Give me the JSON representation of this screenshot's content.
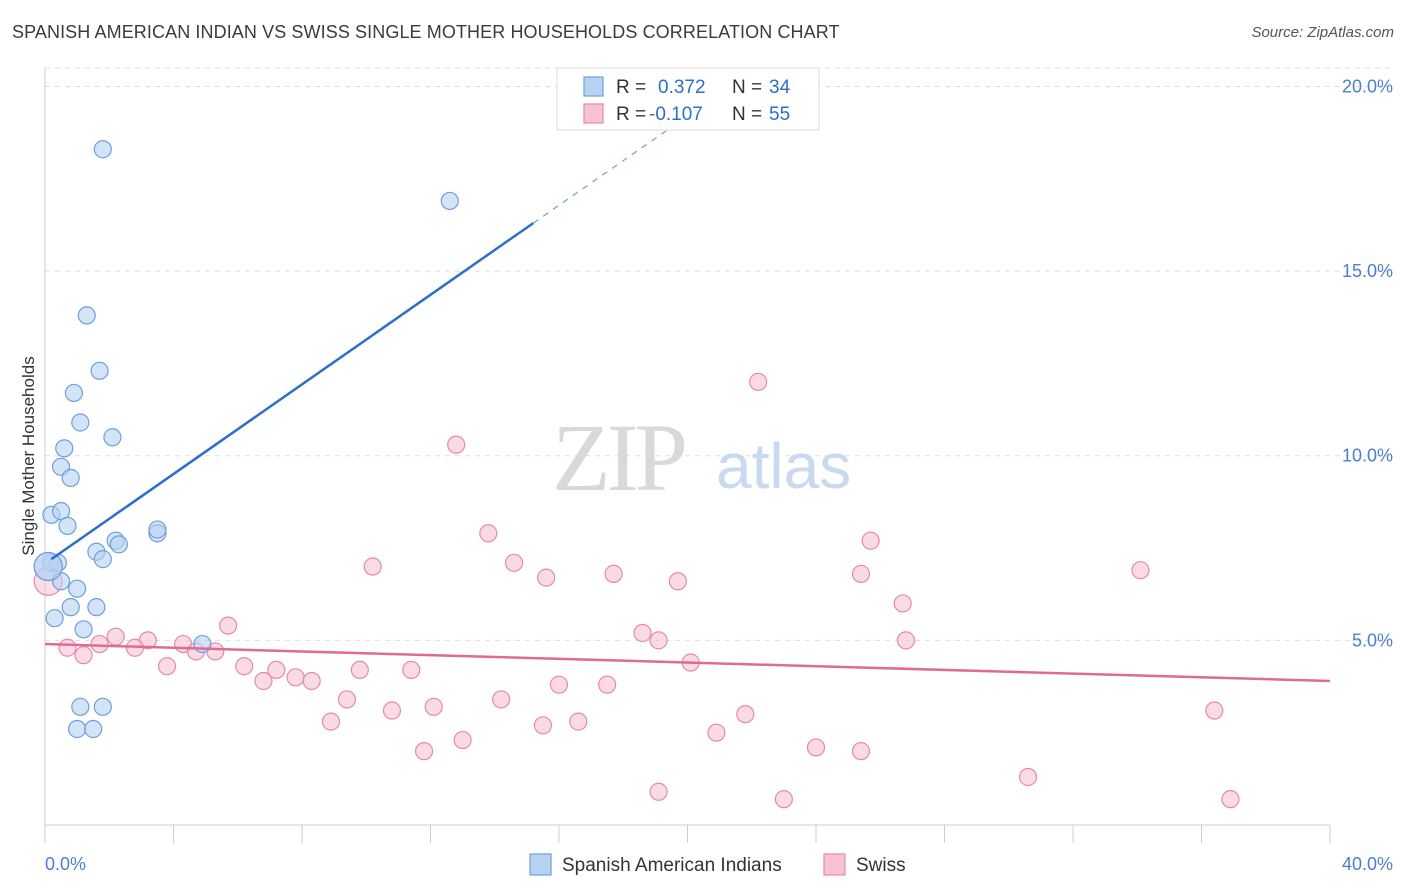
{
  "header": {
    "title": "SPANISH AMERICAN INDIAN VS SWISS SINGLE MOTHER HOUSEHOLDS CORRELATION CHART",
    "source": "Source: ZipAtlas.com"
  },
  "watermark": {
    "zip": "ZIP",
    "atlas": "atlas"
  },
  "colors": {
    "blue_fill": "#b8d2f2",
    "blue_stroke": "#6e9fdc",
    "blue_line": "#2b6fcc",
    "pink_fill": "#f7c3d4",
    "pink_stroke": "#e58aaa",
    "pink_line": "#e06a96",
    "tick_text": "#4a7fd0",
    "grid": "#dddddd"
  },
  "stats_box": {
    "rows": [
      {
        "r_label": "R =",
        "r_value": "0.372",
        "n_label": "N =",
        "n_value": "34"
      },
      {
        "r_label": "R =",
        "r_value": "-0.107",
        "n_label": "N =",
        "n_value": "55"
      }
    ]
  },
  "chart_data": {
    "type": "scatter",
    "title": "SPANISH AMERICAN INDIAN VS SWISS SINGLE MOTHER HOUSEHOLDS CORRELATION CHART",
    "xlabel": "",
    "ylabel": "Single Mother Households",
    "xlim": [
      0,
      40
    ],
    "ylim": [
      0,
      20.5
    ],
    "x_tick_labels": [
      "0.0%",
      "40.0%"
    ],
    "y_ticks": [
      5,
      10,
      15,
      20
    ],
    "y_tick_labels": [
      "5.0%",
      "10.0%",
      "15.0%",
      "20.0%"
    ],
    "grid": true,
    "legend_position": "bottom-center",
    "series": [
      {
        "name": "Spanish American Indians",
        "color": "#6e9fdc",
        "r": 0.372,
        "n": 34,
        "trend": {
          "x": [
            0.2,
            15.2
          ],
          "y": [
            7.2,
            16.3
          ],
          "dash_to": [
            20.0,
            19.2
          ]
        },
        "points": [
          [
            1.8,
            18.3
          ],
          [
            12.6,
            16.9
          ],
          [
            1.3,
            13.8
          ],
          [
            1.7,
            12.3
          ],
          [
            0.9,
            11.7
          ],
          [
            1.1,
            10.9
          ],
          [
            2.1,
            10.5
          ],
          [
            0.6,
            10.2
          ],
          [
            0.5,
            9.7
          ],
          [
            0.8,
            9.4
          ],
          [
            0.2,
            8.4
          ],
          [
            0.5,
            8.5
          ],
          [
            0.7,
            8.1
          ],
          [
            3.5,
            7.9
          ],
          [
            3.5,
            8.0
          ],
          [
            2.2,
            7.7
          ],
          [
            2.3,
            7.6
          ],
          [
            1.6,
            7.4
          ],
          [
            1.8,
            7.2
          ],
          [
            0.2,
            7.1
          ],
          [
            0.4,
            7.1
          ],
          [
            0.1,
            7.0
          ],
          [
            0.5,
            6.6
          ],
          [
            1.0,
            6.4
          ],
          [
            0.8,
            5.9
          ],
          [
            1.6,
            5.9
          ],
          [
            0.3,
            5.6
          ],
          [
            1.2,
            5.3
          ],
          [
            4.9,
            4.9
          ],
          [
            1.1,
            3.2
          ],
          [
            1.8,
            3.2
          ],
          [
            1.0,
            2.6
          ],
          [
            1.5,
            2.6
          ],
          [
            0.1,
            7.0
          ]
        ]
      },
      {
        "name": "Swiss",
        "color": "#e58aaa",
        "r": -0.107,
        "n": 55,
        "trend": {
          "x": [
            0,
            40
          ],
          "y": [
            4.9,
            3.9
          ]
        },
        "points": [
          [
            22.2,
            12.0
          ],
          [
            12.8,
            10.3
          ],
          [
            13.8,
            7.9
          ],
          [
            25.7,
            7.7
          ],
          [
            10.2,
            7.0
          ],
          [
            14.6,
            7.1
          ],
          [
            15.6,
            6.7
          ],
          [
            17.7,
            6.8
          ],
          [
            19.7,
            6.6
          ],
          [
            25.4,
            6.8
          ],
          [
            34.1,
            6.9
          ],
          [
            26.7,
            6.0
          ],
          [
            5.7,
            5.4
          ],
          [
            18.6,
            5.2
          ],
          [
            19.1,
            5.0
          ],
          [
            26.8,
            5.0
          ],
          [
            2.2,
            5.1
          ],
          [
            3.2,
            5.0
          ],
          [
            1.7,
            4.9
          ],
          [
            4.3,
            4.9
          ],
          [
            2.8,
            4.8
          ],
          [
            0.7,
            4.8
          ],
          [
            4.7,
            4.7
          ],
          [
            5.3,
            4.7
          ],
          [
            1.2,
            4.6
          ],
          [
            20.1,
            4.4
          ],
          [
            3.8,
            4.3
          ],
          [
            6.2,
            4.3
          ],
          [
            7.2,
            4.2
          ],
          [
            9.8,
            4.2
          ],
          [
            11.4,
            4.2
          ],
          [
            7.8,
            4.0
          ],
          [
            8.3,
            3.9
          ],
          [
            6.8,
            3.9
          ],
          [
            16.0,
            3.8
          ],
          [
            17.5,
            3.8
          ],
          [
            9.4,
            3.4
          ],
          [
            14.2,
            3.4
          ],
          [
            10.8,
            3.1
          ],
          [
            12.1,
            3.2
          ],
          [
            36.4,
            3.1
          ],
          [
            21.8,
            3.0
          ],
          [
            8.9,
            2.8
          ],
          [
            15.5,
            2.7
          ],
          [
            16.6,
            2.8
          ],
          [
            20.9,
            2.5
          ],
          [
            13.0,
            2.3
          ],
          [
            11.8,
            2.0
          ],
          [
            24.0,
            2.1
          ],
          [
            25.4,
            2.0
          ],
          [
            30.6,
            1.3
          ],
          [
            19.1,
            0.9
          ],
          [
            23.0,
            0.7
          ],
          [
            36.9,
            0.7
          ],
          [
            0.1,
            6.6
          ]
        ]
      }
    ]
  }
}
